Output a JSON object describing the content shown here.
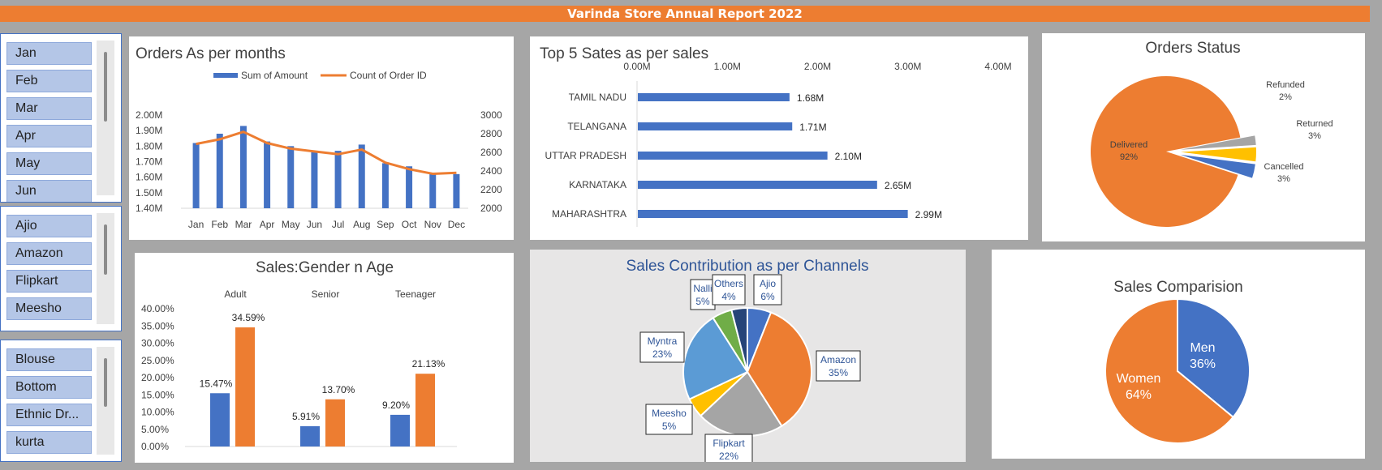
{
  "title": "Varinda Store Annual Report 2022",
  "colors": {
    "blue": "#4472c4",
    "orange": "#ed7d31",
    "gray": "#a5a5a5",
    "yellow": "#ffc000",
    "lightblue": "#5b9bd5",
    "green": "#70ad47",
    "navy": "#264478"
  },
  "slicers": {
    "months": [
      "Jan",
      "Feb",
      "Mar",
      "Apr",
      "May",
      "Jun"
    ],
    "channels": [
      "Ajio",
      "Amazon",
      "Flipkart",
      "Meesho"
    ],
    "categories": [
      "Blouse",
      "Bottom",
      "Ethnic Dr...",
      "kurta"
    ]
  },
  "charts": {
    "orders_months": {
      "title": "Orders As per months",
      "chart_data": {
        "type": "bar",
        "categories": [
          "Jan",
          "Feb",
          "Mar",
          "Apr",
          "May",
          "Jun",
          "Jul",
          "Aug",
          "Sep",
          "Oct",
          "Nov",
          "Dec"
        ],
        "series": [
          {
            "name": "Sum of Amount",
            "type": "bar",
            "axis": "left",
            "values": [
              1.82,
              1.88,
              1.93,
              1.83,
              1.8,
              1.76,
              1.77,
              1.81,
              1.69,
              1.67,
              1.62,
              1.62
            ]
          },
          {
            "name": "Count of Order ID",
            "type": "line",
            "axis": "right",
            "values": [
              2690,
              2740,
              2820,
              2700,
              2640,
              2610,
              2580,
              2630,
              2490,
              2420,
              2370,
              2380
            ]
          }
        ],
        "y_left_ticks": [
          "1.40M",
          "1.50M",
          "1.60M",
          "1.70M",
          "1.80M",
          "1.90M",
          "2.00M"
        ],
        "y_right_ticks": [
          "2000",
          "2200",
          "2400",
          "2600",
          "2800",
          "3000"
        ],
        "ylim_left": [
          1.4,
          2.0
        ],
        "ylim_right": [
          2000,
          3000
        ],
        "legend": "top"
      }
    },
    "top_states": {
      "title": "Top 5 Sates as per sales",
      "chart_data": {
        "type": "bar",
        "orientation": "horizontal",
        "categories": [
          "TAMIL NADU",
          "TELANGANA",
          "UTTAR PRADESH",
          "KARNATAKA",
          "MAHARASHTRA"
        ],
        "values": [
          1.68,
          1.71,
          2.1,
          2.65,
          2.99
        ],
        "data_labels": [
          "1.68M",
          "1.71M",
          "2.10M",
          "2.65M",
          "2.99M"
        ],
        "x_ticks": [
          "0.00M",
          "1.00M",
          "2.00M",
          "3.00M",
          "4.00M"
        ],
        "xlim": [
          0,
          4
        ]
      }
    },
    "orders_status": {
      "title": "Orders Status",
      "chart_data": {
        "type": "pie",
        "slices": [
          {
            "name": "Delivered",
            "value": 92,
            "label": "92%",
            "color": "#ed7d31"
          },
          {
            "name": "Refunded",
            "value": 2,
            "label": "2%",
            "color": "#a5a5a5"
          },
          {
            "name": "Returned",
            "value": 3,
            "label": "3%",
            "color": "#ffc000"
          },
          {
            "name": "Cancelled",
            "value": 3,
            "label": "3%",
            "color": "#4472c4"
          }
        ]
      }
    },
    "gender_age": {
      "title": "Sales:Gender n Age",
      "chart_data": {
        "type": "bar",
        "categories": [
          "Adult",
          "Senior",
          "Teenager"
        ],
        "series": [
          {
            "values": [
              15.47,
              5.91,
              9.2
            ],
            "labels": [
              "15.47%",
              "5.91%",
              "9.20%"
            ],
            "color": "#4472c4"
          },
          {
            "values": [
              34.59,
              13.7,
              21.13
            ],
            "labels": [
              "34.59%",
              "13.70%",
              "21.13%"
            ],
            "color": "#ed7d31"
          }
        ],
        "y_ticks": [
          "0.00%",
          "5.00%",
          "10.00%",
          "15.00%",
          "20.00%",
          "25.00%",
          "30.00%",
          "35.00%",
          "40.00%"
        ],
        "ylim": [
          0,
          40
        ]
      }
    },
    "channels": {
      "title": "Sales Contribution as per Channels",
      "chart_data": {
        "type": "pie",
        "slices": [
          {
            "name": "Ajio",
            "value": 6,
            "label": "6%",
            "color": "#4472c4"
          },
          {
            "name": "Amazon",
            "value": 35,
            "label": "35%",
            "color": "#ed7d31"
          },
          {
            "name": "Flipkart",
            "value": 22,
            "label": "22%",
            "color": "#a5a5a5"
          },
          {
            "name": "Meesho",
            "value": 5,
            "label": "5%",
            "color": "#ffc000"
          },
          {
            "name": "Myntra",
            "value": 23,
            "label": "23%",
            "color": "#5b9bd5"
          },
          {
            "name": "Nalli",
            "value": 5,
            "label": "5%",
            "color": "#70ad47"
          },
          {
            "name": "Others",
            "value": 4,
            "label": "4%",
            "color": "#264478"
          }
        ]
      }
    },
    "gender": {
      "title": "Sales Comparision",
      "chart_data": {
        "type": "pie",
        "slices": [
          {
            "name": "Men",
            "value": 36,
            "label": "36%",
            "color": "#4472c4"
          },
          {
            "name": "Women",
            "value": 64,
            "label": "64%",
            "color": "#ed7d31"
          }
        ]
      }
    }
  }
}
